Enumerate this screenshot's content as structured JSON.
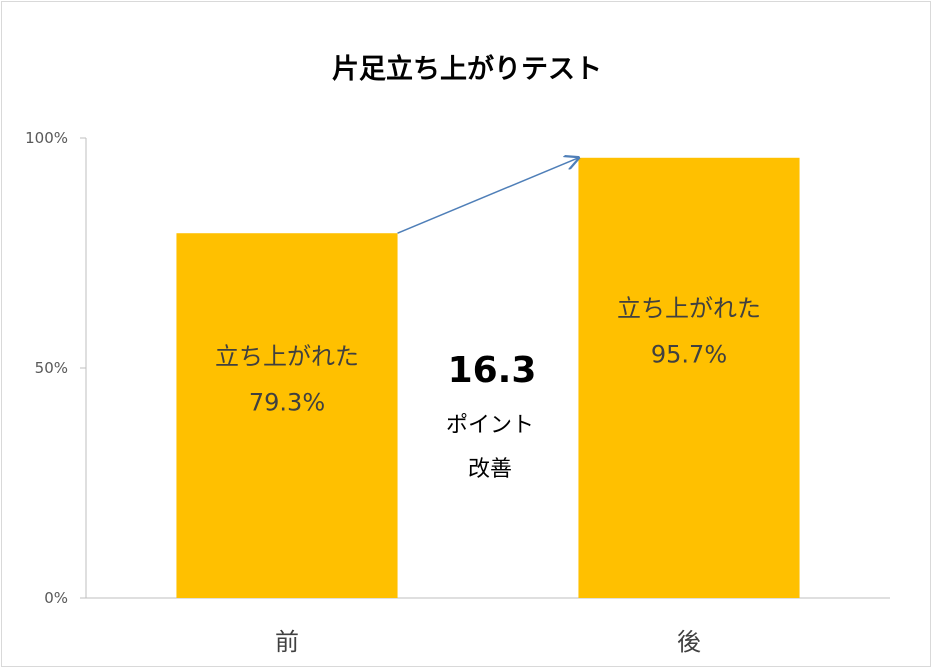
{
  "chart_data": {
    "type": "bar",
    "title": "片足立ち上がりテスト",
    "categories": [
      "前",
      "後"
    ],
    "values": [
      79.3,
      95.7
    ],
    "ylim": [
      0,
      100
    ],
    "yticks": [
      0,
      50,
      100
    ],
    "ytick_labels": [
      "0%",
      "50%",
      "100%"
    ],
    "bar_color": "#FFC000",
    "bar_labels": [
      {
        "text": "立ち上がれた",
        "value": "79.3%"
      },
      {
        "text": "立ち上がれた",
        "value": "95.7%"
      }
    ],
    "annotation": {
      "value": "16.3",
      "unit": "ポイント",
      "text": "改善",
      "arrow_color": "#4F7FB8"
    },
    "grid": false,
    "legend": "none"
  }
}
